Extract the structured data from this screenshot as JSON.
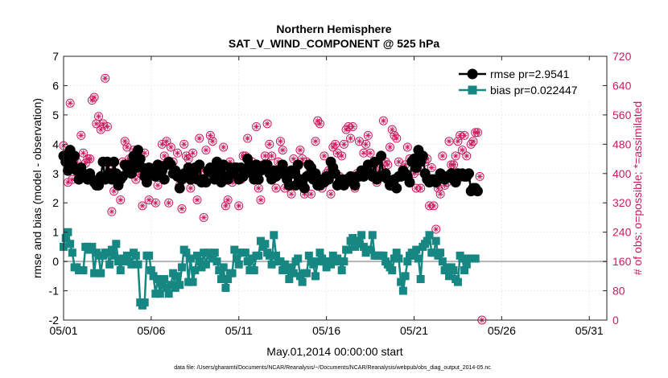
{
  "chart_data": {
    "type": "line",
    "title": "Northern Hemisphere",
    "subtitle": "SAT_V_WIND_COMPONENT @ 525 hPa",
    "xlabel": "May.01,2014 00:00:00 start",
    "ylabel": "rmse and bias (model - observation)",
    "ylabel_right": "# of obs: o=possible; *=assimilated",
    "footnote": "data file: /Users/gharamti/Documents/NCAR/Reanalysis/~/Documents/NCAR/Reanalysis/webpub/obs_diag_output_2014-05.nc",
    "xlim": [
      1,
      32
    ],
    "ylim": [
      -2,
      7
    ],
    "ylim_right": [
      0,
      720
    ],
    "x_ticks": [
      1,
      6,
      11,
      16,
      21,
      26,
      31
    ],
    "x_tick_labels": [
      "05/01",
      "05/06",
      "05/11",
      "05/16",
      "05/21",
      "05/26",
      "05/31"
    ],
    "y_ticks": [
      -2,
      -1,
      0,
      1,
      2,
      3,
      4,
      5,
      6,
      7
    ],
    "y_tick_labels": [
      "-2",
      "-1",
      "0",
      "1",
      "2",
      "3",
      "4",
      "5",
      "6",
      "7"
    ],
    "y2_ticks": [
      0,
      80,
      160,
      240,
      320,
      400,
      480,
      560,
      640,
      720
    ],
    "y2_tick_labels": [
      "0",
      "80",
      "160",
      "240",
      "320",
      "400",
      "480",
      "560",
      "640",
      "720"
    ],
    "grid": true,
    "legend_position": "top-right",
    "zero_line": 0,
    "x_start": 1,
    "x_step": 0.125,
    "series": [
      {
        "name": "rmse pr=2.9541",
        "axis": "left",
        "style": "line-circle",
        "values": [
          3.6,
          3.4,
          3.1,
          3.8,
          3.3,
          3.6,
          3.1,
          2.8,
          3.2,
          3.0,
          2.9,
          2.8,
          3.0,
          2.8,
          2.7,
          2.6,
          2.6,
          2.9,
          3.4,
          2.8,
          3.4,
          3.0,
          2.8,
          3.4,
          3.0,
          2.6,
          2.8,
          2.9,
          3.3,
          3.2,
          3.3,
          3.0,
          3.6,
          3.2,
          3.8,
          3.5,
          3.2,
          2.9,
          2.7,
          3.2,
          3.0,
          3.1,
          2.9,
          3.3,
          3.0,
          3.1,
          2.8,
          3.3,
          3.4,
          3.3,
          3.0,
          3.1,
          2.9,
          2.5,
          2.8,
          3.0,
          2.9,
          3.2,
          2.8,
          3.1,
          3.2,
          2.8,
          3.3,
          2.7,
          2.8,
          2.7,
          3.1,
          3.2,
          3.0,
          2.8,
          3.4,
          3.1,
          2.7,
          3.3,
          2.9,
          2.8,
          3.2,
          3.0,
          3.2,
          3.2,
          2.8,
          3.2,
          2.9,
          3.1,
          3.5,
          3.3,
          3.0,
          2.8,
          3.3,
          2.8,
          3.1,
          3.2,
          3.3,
          3.3,
          3.0,
          2.8,
          3.1,
          2.9,
          3.1,
          3.0,
          3.3,
          3.0,
          2.8,
          2.6,
          3.1,
          3.0,
          2.6,
          3.3,
          2.8,
          2.7,
          2.5,
          2.9,
          3.3,
          3.2,
          2.8,
          3.0,
          2.6,
          2.6,
          2.8,
          2.7,
          2.9,
          2.8,
          3.4,
          3.2,
          3.0,
          2.6,
          2.7,
          2.8,
          2.6,
          2.8,
          2.8,
          2.9,
          2.7,
          2.6,
          2.9,
          2.9,
          3.1,
          2.9,
          3.0,
          3.3,
          3.0,
          2.9,
          3.4,
          2.8,
          2.9,
          3.6,
          2.9,
          3.0,
          2.8,
          2.6,
          2.6,
          2.8,
          2.5,
          2.9,
          2.9,
          3.1,
          3.0,
          2.9,
          2.7,
          3.4,
          3.5,
          3.2,
          3.8,
          3.4,
          3.6,
          3.0,
          2.8,
          2.7,
          2.8,
          2.8,
          2.7,
          2.8,
          3.0,
          2.9,
          2.8,
          2.9,
          2.9,
          3.0,
          2.8,
          2.7,
          3.0,
          2.9,
          3.0,
          2.9,
          2.9,
          3.0,
          2.4,
          2.5,
          2.5,
          2.4
        ]
      },
      {
        "name": "bias pr=0.022447",
        "axis": "left",
        "style": "line-square",
        "values": [
          0.5,
          0.8,
          1.0,
          0.6,
          0.3,
          -0.2,
          -0.2,
          -0.3,
          -0.3,
          -0.3,
          0.5,
          0.5,
          0.4,
          0.5,
          -0.4,
          0.3,
          0.2,
          -0.4,
          0.2,
          0.3,
          0.3,
          -0.1,
          0.4,
          0.2,
          0.6,
          0.0,
          -0.3,
          0.1,
          0.0,
          0.2,
          0.0,
          -0.1,
          0.3,
          0.2,
          -0.1,
          -1.4,
          -1.5,
          -1.4,
          0.2,
          0.2,
          -0.3,
          -0.5,
          -1.1,
          -0.6,
          -1.1,
          -0.8,
          -0.6,
          -0.9,
          -1.1,
          -0.8,
          -0.4,
          -0.9,
          -0.5,
          -0.8,
          -0.2,
          0.4,
          0.3,
          -0.7,
          0.1,
          -0.7,
          -0.3,
          0.2,
          0.0,
          -0.2,
          0.3,
          -0.1,
          0.3,
          0.2,
          0.1,
          0.3,
          0.0,
          -0.3,
          -0.6,
          -0.2,
          -0.9,
          -0.6,
          -0.4,
          -0.4,
          0.4,
          0.1,
          -0.1,
          0.3,
          0.3,
          0.3,
          0.0,
          -0.3,
          0.1,
          -0.3,
          0.2,
          0.2,
          0.7,
          0.5,
          0.6,
          0.3,
          0.2,
          -0.1,
          0.9,
          0.2,
          0.0,
          0.0,
          -0.3,
          -0.1,
          -0.3,
          -0.6,
          -0.2,
          -0.4,
          0.0,
          0.1,
          -0.5,
          -0.7,
          -0.4,
          -0.4,
          0.2,
          0.0,
          -0.1,
          -0.5,
          0.0,
          0.3,
          0.1,
          0.0,
          -0.2,
          0.0,
          -0.1,
          0.2,
          0.0,
          0.1,
          0.0,
          -0.3,
          0.0,
          0.4,
          0.4,
          0.7,
          0.8,
          0.5,
          0.7,
          0.6,
          0.9,
          0.5,
          0.3,
          0.4,
          0.4,
          0.9,
          0.2,
          0.2,
          0.2,
          0.2,
          0.2,
          0.0,
          -0.1,
          -0.2,
          -0.3,
          0.1,
          0.3,
          0.1,
          -0.7,
          -1.0,
          -0.5,
          0.0,
          0.2,
          0.3,
          0.2,
          0.4,
          0.1,
          -0.6,
          0.5,
          0.6,
          0.7,
          0.9,
          0.3,
          0.3,
          0.7,
          0.2,
          0.3,
          0.0,
          -0.3,
          -0.2,
          -0.5,
          -0.2,
          -0.3,
          -0.6,
          -0.7,
          0.2,
          0.1,
          -0.3,
          -0.1,
          0.1,
          0.1,
          0.1,
          0.1
        ]
      },
      {
        "name": "possible",
        "axis": "right",
        "style": "circle-marker",
        "values": [
          476,
          452,
          376,
          592,
          384,
          416,
          432,
          400,
          504,
          456,
          428,
          440,
          440,
          600,
          608,
          536,
          556,
          520,
          536,
          660,
          528,
          424,
          296,
          352,
          392,
          368,
          328,
          432,
          488,
          472,
          440,
          440,
          464,
          384,
          408,
          400,
          312,
          456,
          384,
          328,
          416,
          392,
          320,
          368,
          424,
          480,
          448,
          488,
          320,
          472,
          432,
          400,
          456,
          368,
          304,
          480,
          448,
          440,
          360,
          456,
          400,
          328,
          496,
          408,
          280,
          464,
          408,
          504,
          488,
          416,
          392,
          392,
          376,
          472,
          312,
          328,
          432,
          376,
          384,
          392,
          312,
          384,
          448,
          448,
          496,
          416,
          432,
          400,
          528,
          360,
          328,
          424,
          448,
          536,
          480,
          448,
          400,
          360,
          432,
          488,
          464,
          360,
          392,
          408,
          344,
          440,
          408,
          376,
          464,
          440,
          344,
          432,
          400,
          344,
          400,
          488,
          544,
          536,
          360,
          448,
          400,
          408,
          344,
          472,
          480,
          456,
          392,
          448,
          480,
          520,
          528,
          496,
          528,
          360,
          400,
          488,
          408,
          456,
          480,
          504,
          456,
          424,
          432,
          376,
          408,
          416,
          544,
          432,
          424,
          472,
          520,
          504,
          496,
          432,
          392,
          400,
          424,
          472,
          440,
          432,
          400,
          360,
          408,
          360,
          448,
          432,
          440,
          312,
          416,
          312,
          248,
          360,
          344,
          448,
          368,
          376,
          488,
          424,
          424,
          448,
          488,
          504,
          464,
          504,
          448,
          400,
          480,
          488,
          512,
          512,
          392,
          0
        ]
      },
      {
        "name": "assimilated",
        "axis": "right",
        "style": "star-marker",
        "values": [
          476,
          452,
          376,
          592,
          384,
          416,
          432,
          400,
          504,
          456,
          428,
          440,
          440,
          600,
          608,
          536,
          556,
          520,
          536,
          660,
          528,
          424,
          296,
          352,
          392,
          368,
          328,
          432,
          488,
          472,
          440,
          440,
          464,
          384,
          408,
          400,
          312,
          456,
          384,
          328,
          416,
          392,
          320,
          368,
          424,
          480,
          448,
          488,
          320,
          472,
          432,
          400,
          456,
          368,
          304,
          480,
          448,
          440,
          360,
          456,
          400,
          328,
          496,
          408,
          280,
          464,
          408,
          504,
          488,
          416,
          392,
          392,
          376,
          472,
          312,
          328,
          432,
          376,
          384,
          392,
          312,
          384,
          448,
          448,
          496,
          416,
          432,
          400,
          528,
          360,
          328,
          424,
          448,
          536,
          480,
          448,
          400,
          360,
          432,
          488,
          464,
          360,
          392,
          408,
          344,
          440,
          408,
          376,
          464,
          440,
          344,
          432,
          400,
          344,
          400,
          488,
          544,
          536,
          360,
          448,
          400,
          408,
          344,
          472,
          480,
          456,
          392,
          448,
          480,
          520,
          528,
          496,
          528,
          360,
          400,
          488,
          408,
          456,
          480,
          504,
          456,
          424,
          432,
          376,
          408,
          416,
          544,
          432,
          424,
          472,
          520,
          504,
          496,
          432,
          392,
          400,
          424,
          472,
          440,
          432,
          400,
          360,
          408,
          360,
          448,
          432,
          440,
          312,
          416,
          312,
          248,
          360,
          344,
          448,
          368,
          376,
          488,
          424,
          424,
          448,
          488,
          504,
          464,
          504,
          448,
          400,
          480,
          488,
          512,
          512,
          392,
          0
        ]
      }
    ]
  },
  "colors": {
    "rmse": "#000000",
    "bias": "#168783",
    "obs": "#cc1a5e",
    "zero_line": "#b3b3b3",
    "axis": "#222222"
  }
}
